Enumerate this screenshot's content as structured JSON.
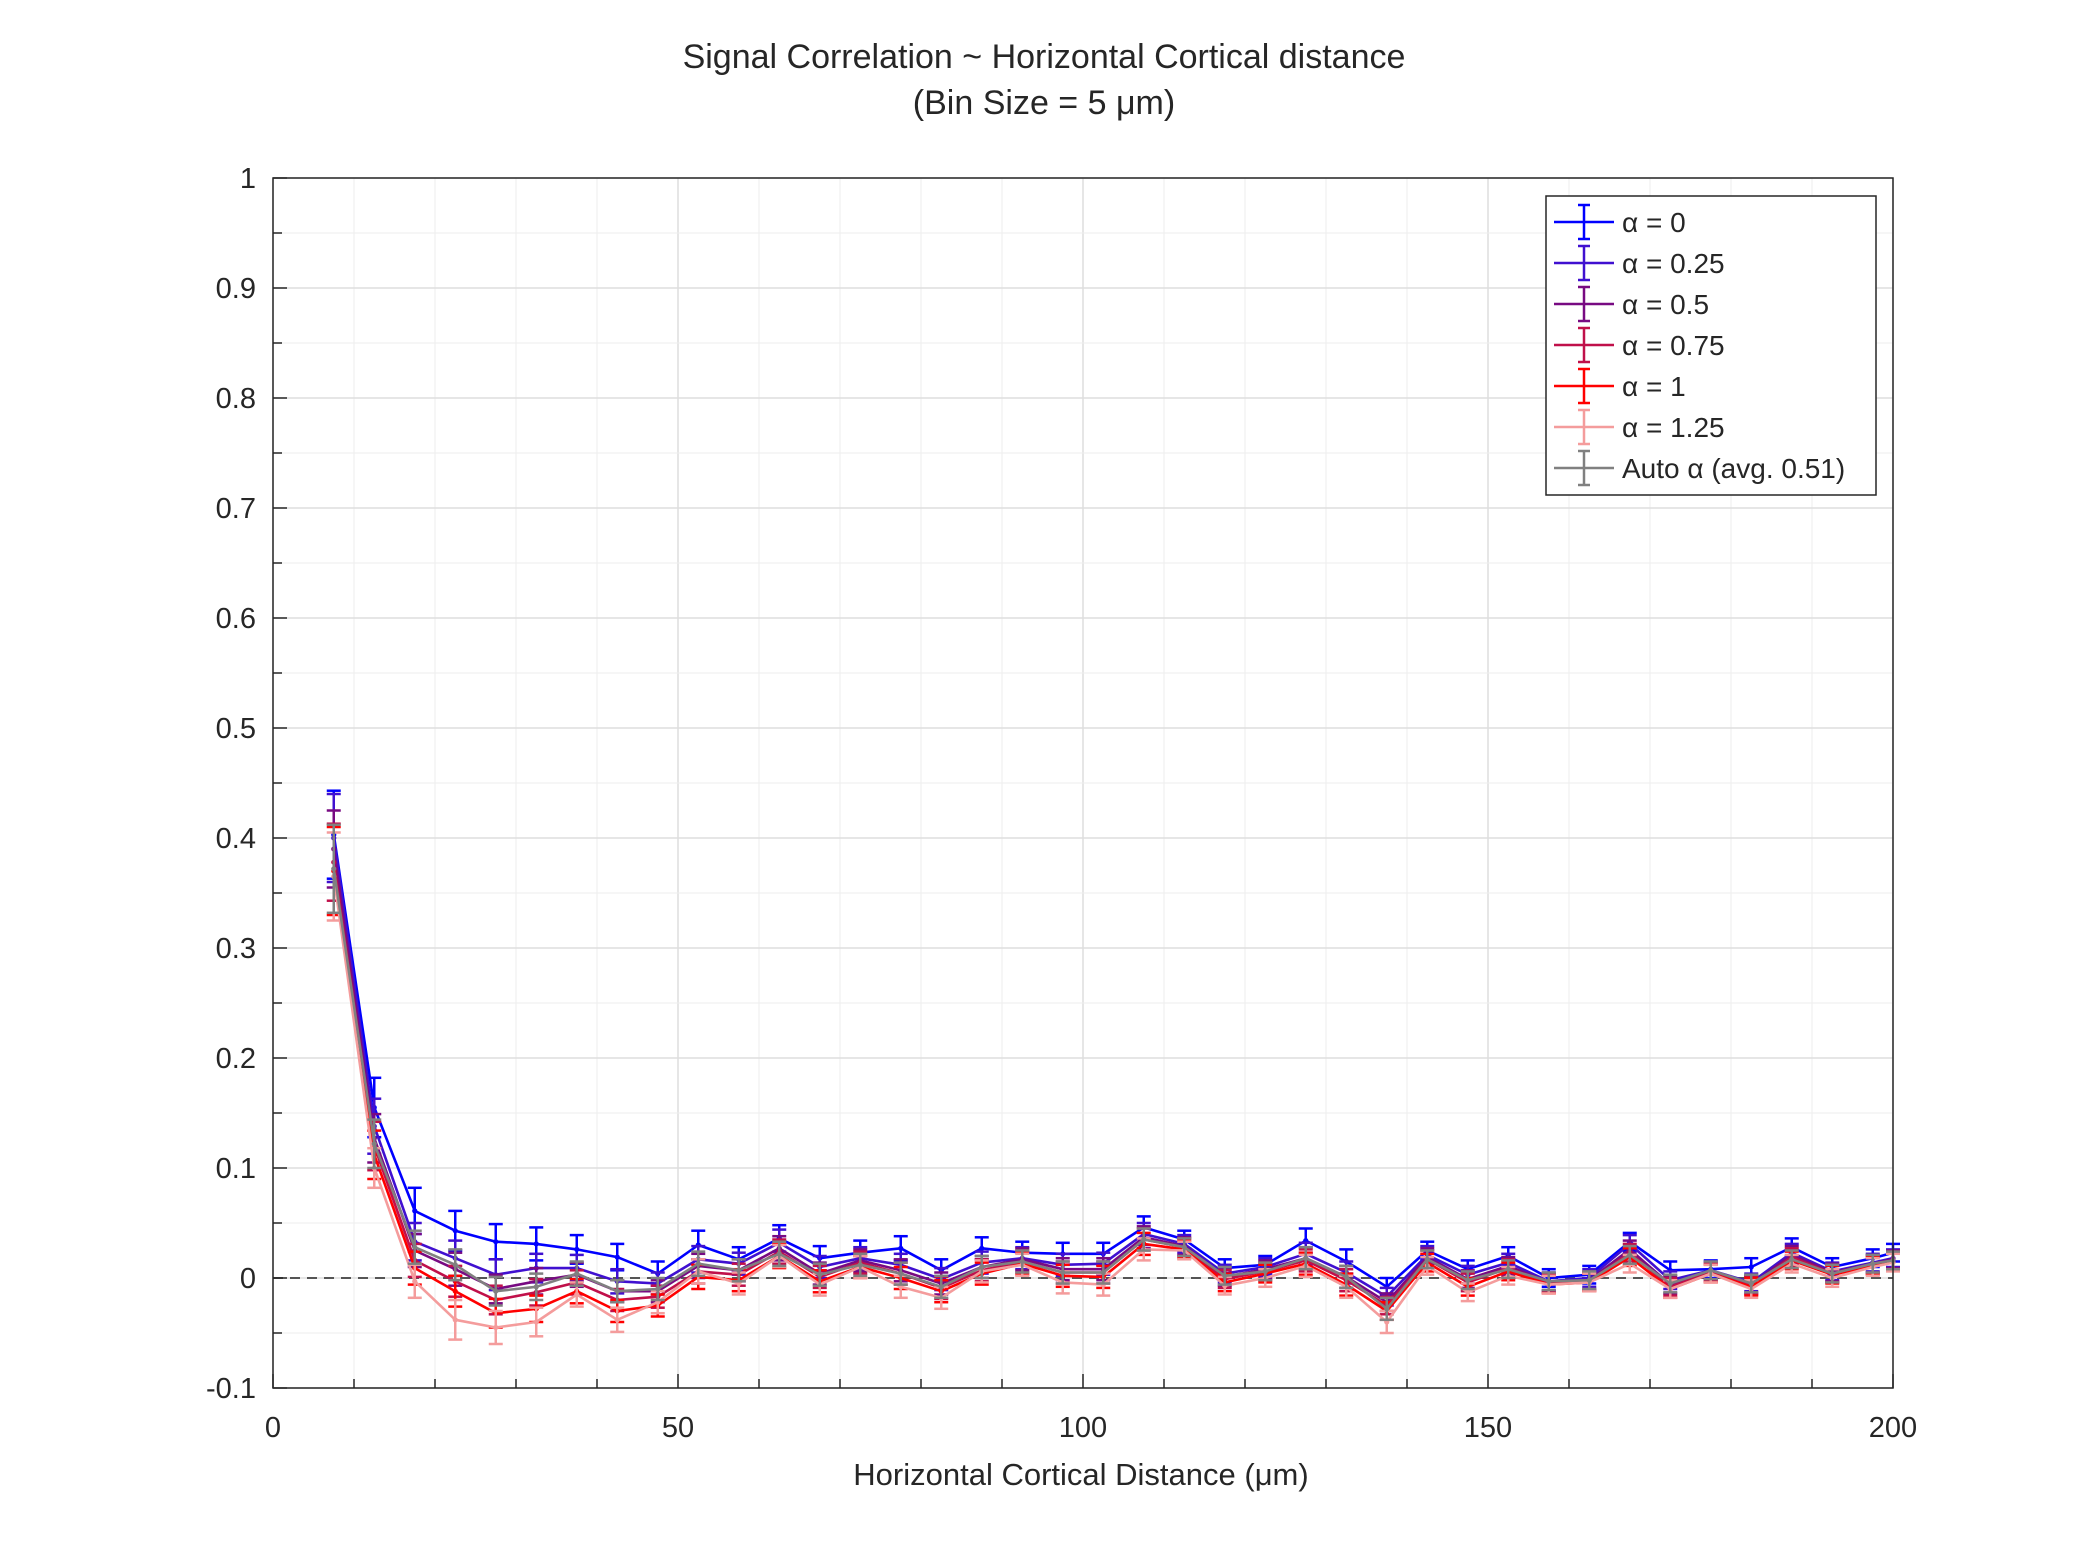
{
  "chart_data": {
    "type": "line",
    "title": "Signal Correlation ~ Horizontal Cortical distance",
    "subtitle": "(Bin Size = 5 μm)",
    "xlabel": "Horizontal Cortical Distance (μm)",
    "ylabel": "",
    "xlim": [
      0,
      200
    ],
    "ylim": [
      -0.1,
      1
    ],
    "xticks": [
      0,
      50,
      100,
      150,
      200
    ],
    "xtick_labels": [
      "0",
      "50",
      "100",
      "150",
      "200"
    ],
    "yticks": [
      -0.1,
      0,
      0.1,
      0.2,
      0.3,
      0.4,
      0.5,
      0.6,
      0.7,
      0.8,
      0.9,
      1
    ],
    "ytick_labels": [
      "-0.1",
      "0",
      "0.1",
      "0.2",
      "0.3",
      "0.4",
      "0.5",
      "0.6",
      "0.7",
      "0.8",
      "0.9",
      "1"
    ],
    "grid": true,
    "legend_position": "top-right",
    "reference_line": {
      "y": 0,
      "style": "dashed",
      "color": "#555555"
    },
    "x": [
      7.5,
      12.5,
      17.5,
      22.5,
      27.5,
      32.5,
      37.5,
      42.5,
      47.5,
      52.5,
      57.5,
      62.5,
      67.5,
      72.5,
      77.5,
      82.5,
      87.5,
      92.5,
      97.5,
      102.5,
      107.5,
      112.5,
      117.5,
      122.5,
      127.5,
      132.5,
      137.5,
      142.5,
      147.5,
      152.5,
      157.5,
      162.5,
      167.5,
      172.5,
      177.5,
      182.5,
      187.5,
      192.5,
      197.5,
      200
    ],
    "series": [
      {
        "name": "α = 0",
        "color": "#0000ff",
        "values": [
          0.403,
          0.155,
          0.061,
          0.043,
          0.033,
          0.031,
          0.026,
          0.019,
          0.004,
          0.03,
          0.017,
          0.036,
          0.018,
          0.023,
          0.027,
          0.007,
          0.027,
          0.023,
          0.022,
          0.022,
          0.046,
          0.035,
          0.009,
          0.012,
          0.034,
          0.015,
          -0.008,
          0.025,
          0.008,
          0.02,
          0.0,
          0.003,
          0.033,
          0.007,
          0.008,
          0.01,
          0.028,
          0.01,
          0.018,
          0.023
        ],
        "errors": [
          0.04,
          0.027,
          0.021,
          0.018,
          0.016,
          0.015,
          0.013,
          0.012,
          0.011,
          0.013,
          0.011,
          0.012,
          0.011,
          0.011,
          0.011,
          0.01,
          0.01,
          0.01,
          0.01,
          0.01,
          0.01,
          0.008,
          0.008,
          0.008,
          0.011,
          0.011,
          0.008,
          0.008,
          0.008,
          0.008,
          0.008,
          0.008,
          0.008,
          0.008,
          0.008,
          0.008,
          0.008,
          0.008,
          0.008,
          0.008
        ]
      },
      {
        "name": "α = 0.25",
        "color": "#4010d0",
        "values": [
          0.4,
          0.138,
          0.033,
          0.018,
          0.003,
          0.009,
          0.009,
          -0.003,
          -0.005,
          0.017,
          0.013,
          0.032,
          0.01,
          0.018,
          0.012,
          -0.001,
          0.014,
          0.018,
          0.012,
          0.013,
          0.04,
          0.031,
          0.004,
          0.01,
          0.022,
          0.005,
          -0.017,
          0.021,
          0.003,
          0.014,
          -0.003,
          0.0,
          0.031,
          -0.002,
          0.007,
          -0.004,
          0.023,
          0.006,
          0.014,
          0.018
        ],
        "errors": [
          0.04,
          0.025,
          0.017,
          0.016,
          0.014,
          0.013,
          0.012,
          0.011,
          0.01,
          0.012,
          0.01,
          0.012,
          0.01,
          0.01,
          0.01,
          0.01,
          0.01,
          0.01,
          0.01,
          0.01,
          0.01,
          0.008,
          0.008,
          0.008,
          0.01,
          0.01,
          0.008,
          0.008,
          0.008,
          0.008,
          0.008,
          0.008,
          0.008,
          0.008,
          0.008,
          0.008,
          0.008,
          0.008,
          0.008,
          0.008
        ]
      },
      {
        "name": "α = 0.5",
        "color": "#780a82",
        "values": [
          0.39,
          0.127,
          0.025,
          0.008,
          -0.01,
          -0.003,
          0.003,
          -0.012,
          -0.012,
          0.011,
          0.007,
          0.027,
          0.004,
          0.016,
          0.007,
          -0.005,
          0.01,
          0.017,
          0.008,
          0.008,
          0.037,
          0.029,
          0.001,
          0.008,
          0.018,
          0.001,
          -0.022,
          0.019,
          -0.001,
          0.011,
          -0.004,
          -0.002,
          0.026,
          -0.006,
          0.006,
          -0.006,
          0.021,
          0.005,
          0.013,
          0.017
        ],
        "errors": [
          0.035,
          0.022,
          0.015,
          0.015,
          0.013,
          0.012,
          0.011,
          0.01,
          0.01,
          0.011,
          0.01,
          0.011,
          0.01,
          0.01,
          0.01,
          0.01,
          0.01,
          0.01,
          0.01,
          0.01,
          0.01,
          0.008,
          0.008,
          0.008,
          0.01,
          0.01,
          0.008,
          0.008,
          0.008,
          0.008,
          0.008,
          0.008,
          0.008,
          0.008,
          0.008,
          0.008,
          0.008,
          0.008,
          0.008,
          0.008
        ]
      },
      {
        "name": "α = 0.75",
        "color": "#c0104a",
        "values": [
          0.378,
          0.12,
          0.016,
          -0.003,
          -0.02,
          -0.013,
          -0.004,
          -0.02,
          -0.017,
          0.006,
          0.003,
          0.024,
          0.001,
          0.014,
          0.004,
          -0.009,
          0.007,
          0.015,
          0.005,
          0.005,
          0.035,
          0.028,
          -0.001,
          0.006,
          0.016,
          -0.002,
          -0.025,
          0.017,
          -0.004,
          0.009,
          -0.005,
          -0.003,
          0.023,
          -0.008,
          0.005,
          -0.007,
          0.019,
          0.004,
          0.012,
          0.016
        ],
        "errors": [
          0.035,
          0.022,
          0.015,
          0.014,
          0.013,
          0.012,
          0.011,
          0.01,
          0.01,
          0.011,
          0.01,
          0.011,
          0.01,
          0.01,
          0.01,
          0.01,
          0.01,
          0.01,
          0.01,
          0.01,
          0.01,
          0.008,
          0.008,
          0.008,
          0.01,
          0.01,
          0.008,
          0.008,
          0.008,
          0.008,
          0.008,
          0.008,
          0.008,
          0.008,
          0.008,
          0.008,
          0.008,
          0.008,
          0.008,
          0.008
        ]
      },
      {
        "name": "α = 1",
        "color": "#ff0000",
        "values": [
          0.37,
          0.112,
          0.009,
          -0.012,
          -0.032,
          -0.028,
          -0.012,
          -0.03,
          -0.025,
          0.001,
          -0.002,
          0.02,
          -0.003,
          0.01,
          0.0,
          -0.012,
          0.004,
          0.013,
          0.002,
          0.001,
          0.031,
          0.026,
          -0.004,
          0.004,
          0.013,
          -0.006,
          -0.03,
          0.014,
          -0.008,
          0.006,
          -0.006,
          -0.004,
          0.019,
          -0.01,
          0.004,
          -0.008,
          0.016,
          0.003,
          0.011,
          0.015
        ],
        "errors": [
          0.04,
          0.022,
          0.015,
          0.014,
          0.013,
          0.012,
          0.011,
          0.01,
          0.01,
          0.011,
          0.01,
          0.011,
          0.01,
          0.01,
          0.01,
          0.01,
          0.01,
          0.01,
          0.01,
          0.01,
          0.01,
          0.008,
          0.008,
          0.008,
          0.01,
          0.01,
          0.008,
          0.008,
          0.008,
          0.008,
          0.008,
          0.008,
          0.008,
          0.008,
          0.008,
          0.008,
          0.008,
          0.008,
          0.008,
          0.008
        ]
      },
      {
        "name": "α = 1.25",
        "color": "#f49c9c",
        "values": [
          0.365,
          0.1,
          -0.003,
          -0.038,
          -0.045,
          -0.04,
          -0.015,
          -0.038,
          -0.022,
          0.006,
          -0.005,
          0.02,
          -0.006,
          0.01,
          -0.008,
          -0.018,
          0.006,
          0.012,
          -0.004,
          -0.006,
          0.026,
          0.025,
          -0.007,
          0.0,
          0.011,
          -0.008,
          -0.04,
          0.011,
          -0.013,
          0.002,
          -0.006,
          -0.004,
          0.013,
          -0.01,
          0.004,
          -0.01,
          0.013,
          0.0,
          0.01,
          0.014
        ],
        "errors": [
          0.04,
          0.018,
          0.015,
          0.018,
          0.015,
          0.013,
          0.011,
          0.011,
          0.01,
          0.011,
          0.01,
          0.01,
          0.01,
          0.01,
          0.01,
          0.01,
          0.01,
          0.01,
          0.01,
          0.01,
          0.01,
          0.008,
          0.008,
          0.008,
          0.01,
          0.01,
          0.01,
          0.008,
          0.008,
          0.008,
          0.008,
          0.008,
          0.008,
          0.008,
          0.008,
          0.008,
          0.008,
          0.008,
          0.008,
          0.008
        ]
      },
      {
        "name": "Auto α (avg. 0.51)",
        "color": "#808080",
        "values": [
          0.372,
          0.122,
          0.028,
          0.012,
          -0.012,
          -0.008,
          0.004,
          -0.012,
          -0.01,
          0.013,
          0.007,
          0.022,
          0.003,
          0.012,
          0.004,
          -0.008,
          0.01,
          0.015,
          0.005,
          0.005,
          0.035,
          0.028,
          0.002,
          0.006,
          0.018,
          0.001,
          -0.028,
          0.017,
          -0.002,
          0.008,
          -0.003,
          -0.002,
          0.021,
          -0.005,
          0.007,
          -0.005,
          0.017,
          0.004,
          0.013,
          0.016
        ],
        "errors": [
          0.04,
          0.022,
          0.015,
          0.014,
          0.013,
          0.012,
          0.011,
          0.01,
          0.01,
          0.011,
          0.01,
          0.011,
          0.01,
          0.01,
          0.01,
          0.01,
          0.01,
          0.01,
          0.01,
          0.01,
          0.01,
          0.008,
          0.008,
          0.008,
          0.01,
          0.01,
          0.01,
          0.008,
          0.008,
          0.008,
          0.008,
          0.008,
          0.008,
          0.008,
          0.008,
          0.008,
          0.008,
          0.008,
          0.008,
          0.008
        ]
      }
    ]
  }
}
